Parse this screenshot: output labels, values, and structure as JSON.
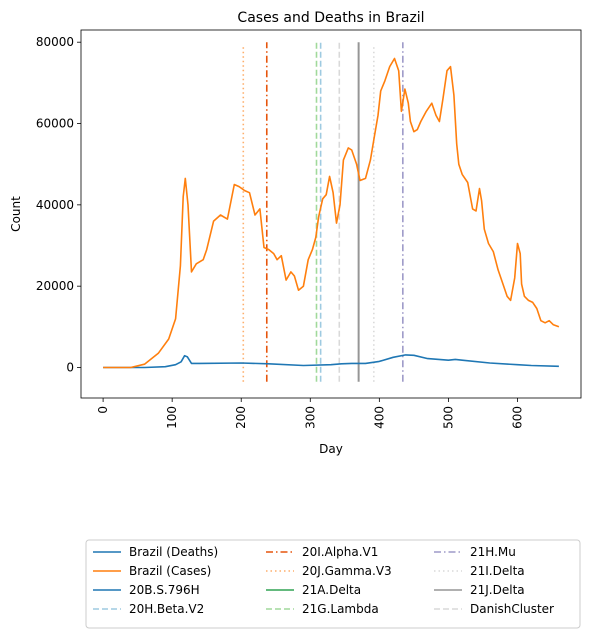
{
  "chart_data": {
    "type": "line",
    "title": "Cases and Deaths in Brazil",
    "xlabel": "Day",
    "ylabel": "Count",
    "xlim": [
      -32,
      692
    ],
    "ylim": [
      -7500,
      83000
    ],
    "x_ticks": [
      0,
      100,
      200,
      300,
      400,
      500,
      600
    ],
    "y_ticks": [
      0,
      20000,
      40000,
      60000,
      80000
    ],
    "x_tick_rotation": 90,
    "grid": false,
    "legend_placement": "below plot, 3 columns",
    "series": [
      {
        "name": "Brazil (Deaths)",
        "color": "#1f77b4",
        "style": "solid",
        "x": [
          0,
          60,
          90,
          105,
          113,
          118,
          122,
          128,
          140,
          200,
          240,
          290,
          330,
          345,
          360,
          380,
          400,
          420,
          438,
          450,
          470,
          500,
          510,
          520,
          560,
          600,
          620,
          660
        ],
        "y": [
          0,
          0,
          200,
          700,
          1400,
          2900,
          2600,
          1000,
          1000,
          1100,
          900,
          500,
          700,
          900,
          1000,
          1000,
          1500,
          2500,
          3100,
          3000,
          2200,
          1800,
          2000,
          1800,
          1100,
          700,
          500,
          300
        ]
      },
      {
        "name": "Brazil (Cases)",
        "color": "#ff7f0e",
        "style": "solid",
        "x": [
          0,
          40,
          60,
          80,
          95,
          105,
          112,
          116,
          119,
          123,
          128,
          135,
          145,
          150,
          160,
          170,
          180,
          190,
          197,
          205,
          212,
          220,
          227,
          233,
          240,
          247,
          252,
          258,
          265,
          272,
          277,
          283,
          290,
          297,
          303,
          308,
          312,
          318,
          323,
          328,
          333,
          338,
          343,
          348,
          355,
          360,
          363,
          367,
          372,
          380,
          387,
          393,
          398,
          402,
          408,
          415,
          422,
          428,
          432,
          437,
          442,
          445,
          450,
          455,
          460,
          468,
          476,
          482,
          487,
          492,
          498,
          503,
          508,
          512,
          515,
          520,
          528,
          535,
          540,
          545,
          548,
          552,
          558,
          565,
          572,
          578,
          585,
          590,
          596,
          600,
          604,
          606,
          610,
          616,
          622,
          628,
          634,
          640,
          646,
          652,
          660
        ],
        "y": [
          0,
          0,
          800,
          3500,
          7000,
          12000,
          25000,
          42000,
          46500,
          40000,
          23500,
          25500,
          26500,
          29000,
          36000,
          37500,
          36500,
          45000,
          44500,
          43500,
          43000,
          37500,
          39000,
          29500,
          29000,
          28000,
          26500,
          27500,
          21500,
          23500,
          22500,
          19000,
          20000,
          26500,
          29000,
          32000,
          37000,
          41500,
          42500,
          47000,
          43000,
          35500,
          40000,
          51000,
          54000,
          53500,
          52000,
          50000,
          46000,
          46500,
          51000,
          57000,
          62000,
          68000,
          70500,
          74000,
          76000,
          73000,
          63000,
          68500,
          65000,
          60500,
          58000,
          58500,
          60500,
          63000,
          65000,
          62000,
          60500,
          66000,
          73000,
          74000,
          67000,
          55000,
          50000,
          47500,
          45500,
          39000,
          38500,
          44000,
          41000,
          34000,
          30500,
          28500,
          24000,
          21000,
          17500,
          16500,
          22000,
          30500,
          28000,
          20500,
          17500,
          16500,
          16000,
          14500,
          11500,
          11000,
          11500,
          10500,
          10000
        ]
      }
    ],
    "vlines": [
      {
        "name": "20B.S.796H",
        "x": 0,
        "color": "#1f77b4",
        "style": "solid",
        "ymin": 0,
        "ymax": 0
      },
      {
        "name": "20H.Beta.V2",
        "x": 315,
        "color": "#9ecae1",
        "style": "dashed",
        "ymin": -3500,
        "ymax": 80000
      },
      {
        "name": "20I.Alpha.V1",
        "x": 237,
        "color": "#e6550d",
        "style": "dashdot",
        "ymin": -3500,
        "ymax": 80000
      },
      {
        "name": "20J.Gamma.V3",
        "x": 203,
        "color": "#fdae6b",
        "style": "dotted",
        "ymin": -3500,
        "ymax": 79000
      },
      {
        "name": "21A.Delta",
        "x": 0,
        "color": "#31a354",
        "style": "solid",
        "ymin": 0,
        "ymax": 0
      },
      {
        "name": "21G.Lambda",
        "x": 309,
        "color": "#a1d99b",
        "style": "dashed",
        "ymin": -3500,
        "ymax": 80000
      },
      {
        "name": "21H.Mu",
        "x": 434,
        "color": "#9e9ac8",
        "style": "dashdot",
        "ymin": -3500,
        "ymax": 80000
      },
      {
        "name": "21I.Delta",
        "x": 392,
        "color": "#d9d9d9",
        "style": "dotted",
        "ymin": -3500,
        "ymax": 79000
      },
      {
        "name": "21J.Delta",
        "x": 370,
        "color": "#969696",
        "style": "solid",
        "ymin": -3500,
        "ymax": 80000
      },
      {
        "name": "DanishCluster",
        "x": 342,
        "color": "#d9d9d9",
        "style": "dashed",
        "ymin": -3500,
        "ymax": 80000
      }
    ],
    "legend": [
      {
        "label": "Brazil (Deaths)",
        "color": "#1f77b4",
        "style": "solid"
      },
      {
        "label": "Brazil (Cases)",
        "color": "#ff7f0e",
        "style": "solid"
      },
      {
        "label": "20B.S.796H",
        "color": "#1f77b4",
        "style": "solid"
      },
      {
        "label": "20H.Beta.V2",
        "color": "#9ecae1",
        "style": "dashed"
      },
      {
        "label": "20I.Alpha.V1",
        "color": "#e6550d",
        "style": "dashdot"
      },
      {
        "label": "20J.Gamma.V3",
        "color": "#fdae6b",
        "style": "dotted"
      },
      {
        "label": "21A.Delta",
        "color": "#31a354",
        "style": "solid"
      },
      {
        "label": "21G.Lambda",
        "color": "#a1d99b",
        "style": "dashed"
      },
      {
        "label": "21H.Mu",
        "color": "#9e9ac8",
        "style": "dashdot"
      },
      {
        "label": "21I.Delta",
        "color": "#d9d9d9",
        "style": "dotted"
      },
      {
        "label": "21J.Delta",
        "color": "#969696",
        "style": "solid"
      },
      {
        "label": "DanishCluster",
        "color": "#d9d9d9",
        "style": "dashed"
      }
    ]
  }
}
